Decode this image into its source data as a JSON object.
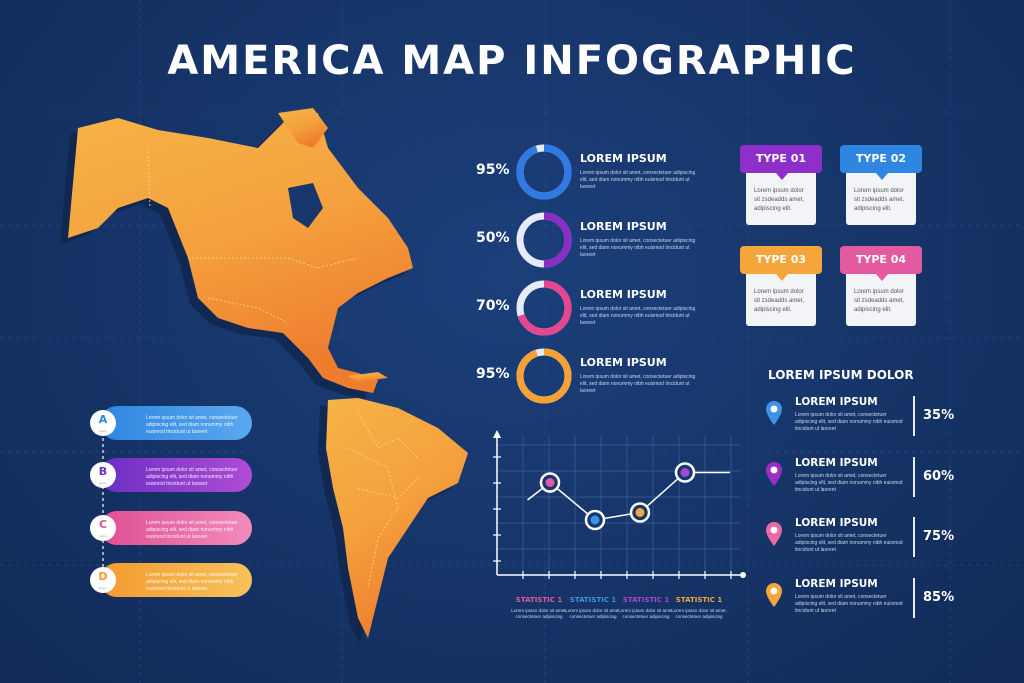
{
  "title": "AMERICA MAP INFOGRAPHIC",
  "lorem_small": "Lorem ipsum dolor sit amet, consectetuer adipiscing elit, sed diam nonummy nibh euismod tincidunt ut laoreet",
  "rings": [
    {
      "pct": "95%",
      "value": 95,
      "heading": "LOREM IPSUM",
      "color": "#2f7ae5"
    },
    {
      "pct": "50%",
      "value": 50,
      "heading": "LOREM IPSUM",
      "color": "#8b2cc9"
    },
    {
      "pct": "70%",
      "value": 70,
      "heading": "LOREM IPSUM",
      "color": "#e6468e"
    },
    {
      "pct": "95%",
      "value": 95,
      "heading": "LOREM IPSUM",
      "color": "#f5a234"
    }
  ],
  "types": [
    {
      "label": "TYPE 01",
      "color": "#8f2fc9",
      "text": "Lorem ipsum dolor sit zsdeadds amet, adipiscing elit."
    },
    {
      "label": "TYPE 02",
      "color": "#2f86e0",
      "text": "Lorem ipsum dolor sit zsdeadds amet, adipiscing elit."
    },
    {
      "label": "TYPE 03",
      "color": "#f6a53a",
      "text": "Lorem ipsum dolor sit zsdeadds amet, adipiscing elit."
    },
    {
      "label": "TYPE 04",
      "color": "#e45aa0",
      "text": "Lorem ipsum dolor sit zsdeadds amet, adipiscing elit."
    }
  ],
  "stats_title": "LOREM IPSUM DOLOR",
  "stats": [
    {
      "heading": "LOREM IPSUM",
      "pct": "35%",
      "color": "#3f92e6"
    },
    {
      "heading": "LOREM IPSUM",
      "pct": "60%",
      "color": "#9a2fc8"
    },
    {
      "heading": "LOREM IPSUM",
      "pct": "75%",
      "color": "#e96aa3"
    },
    {
      "heading": "LOREM IPSUM",
      "pct": "85%",
      "color": "#f4a53b"
    }
  ],
  "pills": [
    {
      "letter": "A",
      "sub": "lorem",
      "color1": "#2f86e0",
      "color2": "#5aa8ef"
    },
    {
      "letter": "B",
      "sub": "lorem",
      "color1": "#6b2fc4",
      "color2": "#b04bd6"
    },
    {
      "letter": "C",
      "sub": "lorem",
      "color1": "#df4f93",
      "color2": "#f28bbd"
    },
    {
      "letter": "D",
      "sub": "lorem",
      "color1": "#f49a2f",
      "color2": "#f7c25a"
    }
  ],
  "chart_labels": [
    {
      "label": "STATISTIC 1",
      "color": "#e35aa2"
    },
    {
      "label": "STATISTIC 1",
      "color": "#3f92e6"
    },
    {
      "label": "STATISTIC 1",
      "color": "#a648d4"
    },
    {
      "label": "STATISTIC 1",
      "color": "#f4a53b"
    }
  ],
  "chart_text": "Lorem ipsum dolor sit amet, consectetuer adipiscing",
  "chart_data": {
    "type": "line",
    "x": [
      1,
      2,
      3,
      4,
      5,
      6
    ],
    "values": [
      null,
      3.5,
      2,
      2.3,
      3.9,
      3.9
    ],
    "highlight_points": [
      {
        "x": 2,
        "y": 3.5,
        "color": "#e35aa2"
      },
      {
        "x": 3,
        "y": 2,
        "color": "#3f92e6"
      },
      {
        "x": 4,
        "y": 2.3,
        "color": "#f4a53b"
      },
      {
        "x": 5,
        "y": 3.9,
        "color": "#a648d4"
      }
    ],
    "ylim": [
      0,
      5
    ],
    "grid": true
  }
}
